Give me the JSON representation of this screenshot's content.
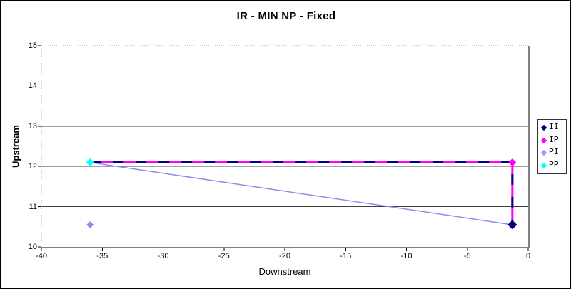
{
  "chart_data": {
    "type": "line",
    "title": "IR - MIN NP - Fixed",
    "xlabel": "Downstream",
    "ylabel": "Upstream",
    "xlim": [
      -40,
      0
    ],
    "ylim": [
      10,
      15
    ],
    "xticks": [
      -40,
      -35,
      -30,
      -25,
      -20,
      -15,
      -10,
      -5,
      0
    ],
    "yticks": [
      10,
      11,
      12,
      13,
      14,
      15
    ],
    "grid": "horizontal",
    "legend_position": "right",
    "series": [
      {
        "name": "II",
        "color": "#000080",
        "line": [
          [
            -36,
            12.1
          ],
          [
            -1.3,
            12.1
          ],
          [
            -1.3,
            10.55
          ]
        ],
        "dash": "15 17",
        "width": 3,
        "markers": [
          [
            -1.3,
            10.55
          ]
        ],
        "marker_size": 6.5
      },
      {
        "name": "IP",
        "color": "#FF00FF",
        "line": [
          [
            -36,
            12.1
          ],
          [
            -1.3,
            12.1
          ],
          [
            -1.3,
            10.55
          ]
        ],
        "dash": null,
        "width": 3,
        "markers": [
          [
            -1.3,
            12.1
          ]
        ],
        "marker_size": 5.5
      },
      {
        "name": "PI",
        "color": "#8C8CF0",
        "line": [
          [
            -36,
            12.1
          ],
          [
            -1.3,
            10.55
          ]
        ],
        "dash": null,
        "width": 1.5,
        "markers": [
          [
            -36,
            10.55
          ]
        ],
        "marker_size": 5
      },
      {
        "name": "PP",
        "color": "#00FFFF",
        "line": [],
        "dash": null,
        "width": 0,
        "markers": [
          [
            -36,
            12.1
          ]
        ],
        "marker_size": 5.5
      }
    ],
    "legend": [
      {
        "label": "II",
        "color": "#000080"
      },
      {
        "label": "IP",
        "color": "#FF00FF"
      },
      {
        "label": "PI",
        "color": "#9999FF"
      },
      {
        "label": "PP",
        "color": "#00FFFF"
      }
    ],
    "style": {
      "gridline_color": "#404040",
      "axis_color": "#808080",
      "plot_border_dotted_color": "#909090",
      "tick_color": "#000000",
      "background": "#FFFFFF"
    }
  }
}
